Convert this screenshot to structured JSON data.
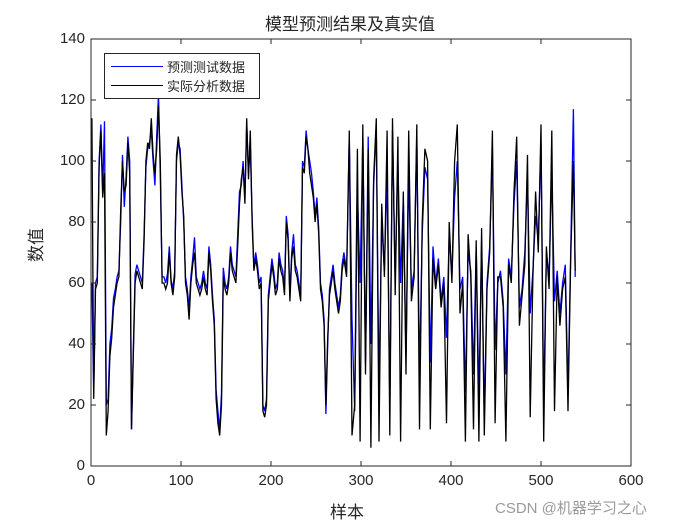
{
  "figure": {
    "title": "模型预测结果及真实值",
    "xlabel": "样本",
    "ylabel": "数值",
    "watermark": "CSDN @机器学习之心"
  },
  "legend": [
    {
      "label": "预测测试数据",
      "color": "#0000ff"
    },
    {
      "label": "实际分析数据",
      "color": "#000000"
    }
  ],
  "axes": {
    "x_ticks": [
      "0",
      "100",
      "200",
      "300",
      "400",
      "500",
      "600"
    ],
    "y_ticks": [
      "0",
      "20",
      "40",
      "60",
      "80",
      "100",
      "120",
      "140"
    ]
  },
  "chart_data": {
    "type": "line",
    "title": "模型预测结果及真实值",
    "xlabel": "样本",
    "ylabel": "数值",
    "xlim": [
      0,
      600
    ],
    "ylim": [
      0,
      140
    ],
    "grid": false,
    "legend_position": "upper-left",
    "x_ticks": [
      0,
      100,
      200,
      300,
      400,
      500,
      600
    ],
    "y_ticks": [
      0,
      20,
      40,
      60,
      80,
      100,
      120,
      140
    ],
    "series": [
      {
        "name": "预测测试数据",
        "color": "#0000ff",
        "x": [
          1,
          3,
          5,
          7,
          9,
          11,
          13,
          15,
          17,
          19,
          21,
          23,
          25,
          27,
          29,
          31,
          33,
          35,
          37,
          39,
          41,
          43,
          45,
          47,
          49,
          51,
          53,
          55,
          57,
          59,
          61,
          63,
          65,
          67,
          69,
          71,
          73,
          75,
          77,
          79,
          81,
          83,
          85,
          87,
          89,
          91,
          93,
          95,
          97,
          99,
          101,
          103,
          105,
          107,
          109,
          111,
          113,
          115,
          117,
          119,
          121,
          123,
          125,
          127,
          129,
          131,
          133,
          135,
          137,
          139,
          141,
          143,
          145,
          147,
          149,
          151,
          153,
          155,
          157,
          159,
          161,
          163,
          165,
          167,
          169,
          171,
          173,
          175,
          177,
          179,
          181,
          183,
          185,
          187,
          189,
          191,
          193,
          195,
          197,
          199,
          201,
          203,
          205,
          207,
          209,
          211,
          213,
          215,
          217,
          219,
          221,
          223,
          225,
          227,
          229,
          231,
          233,
          235,
          237,
          239,
          241,
          243,
          245,
          247,
          249,
          251,
          253,
          255,
          257,
          259,
          261,
          263,
          265,
          267,
          269,
          271,
          273,
          275,
          277,
          279,
          281,
          284,
          287,
          290,
          293,
          296,
          299,
          302,
          305,
          308,
          311,
          314,
          317,
          320,
          323,
          326,
          329,
          332,
          335,
          338,
          341,
          344,
          347,
          350,
          353,
          356,
          359,
          362,
          365,
          368,
          371,
          374,
          377,
          380,
          383,
          386,
          389,
          392,
          395,
          398,
          401,
          404,
          407,
          410,
          413,
          416,
          419,
          422,
          425,
          428,
          431,
          434,
          437,
          440,
          443,
          446,
          449,
          452,
          455,
          458,
          461,
          464,
          467,
          470,
          473,
          476,
          479,
          482,
          485,
          488,
          491,
          494,
          497,
          500,
          503,
          506,
          509,
          512,
          515,
          518,
          521,
          524,
          527,
          530,
          533,
          536,
          538
        ],
        "values": [
          60,
          24,
          60,
          62,
          100,
          112,
          90,
          113,
          20,
          22,
          40,
          45,
          55,
          58,
          62,
          64,
          80,
          102,
          85,
          95,
          108,
          100,
          12,
          38,
          63,
          66,
          64,
          62,
          60,
          76,
          98,
          104,
          106,
          110,
          100,
          92,
          108,
          122,
          95,
          62,
          62,
          60,
          63,
          72,
          61,
          58,
          64,
          100,
          106,
          104,
          92,
          80,
          62,
          58,
          52,
          62,
          68,
          75,
          62,
          60,
          58,
          60,
          64,
          60,
          58,
          72,
          66,
          56,
          48,
          25,
          18,
          12,
          24,
          65,
          60,
          58,
          62,
          72,
          66,
          64,
          62,
          76,
          90,
          92,
          100,
          88,
          112,
          96,
          105,
          82,
          65,
          70,
          66,
          60,
          62,
          20,
          18,
          22,
          56,
          62,
          68,
          64,
          58,
          60,
          70,
          66,
          64,
          58,
          82,
          76,
          56,
          70,
          76,
          66,
          64,
          60,
          56,
          100,
          98,
          110,
          104,
          100,
          96,
          90,
          82,
          88,
          78,
          60,
          56,
          48,
          17,
          40,
          58,
          62,
          66,
          60,
          56,
          52,
          56,
          66,
          70,
          64,
          108,
          48,
          18,
          90,
          60,
          108,
          34,
          108,
          40,
          92,
          110,
          26,
          80,
          64,
          96,
          20,
          110,
          62,
          100,
          60,
          88,
          36,
          96,
          58,
          64,
          108,
          30,
          76,
          98,
          94,
          34,
          72,
          60,
          68,
          54,
          62,
          42,
          76,
          62,
          88,
          100,
          58,
          62,
          24,
          70,
          64,
          30,
          72,
          22,
          74,
          16,
          60,
          72,
          104,
          38,
          60,
          64,
          54,
          30,
          68,
          62,
          86,
          100,
          52,
          58,
          70,
          94,
          50,
          64,
          82,
          74,
          106,
          20,
          70,
          62,
          96,
          54,
          64,
          50,
          60,
          66,
          24,
          70,
          117,
          62
        ]
      },
      {
        "name": "实际分析数据",
        "color": "#000000",
        "x": [
          1,
          3,
          5,
          7,
          9,
          11,
          13,
          15,
          17,
          19,
          21,
          23,
          25,
          27,
          29,
          31,
          33,
          35,
          37,
          39,
          41,
          43,
          45,
          47,
          49,
          51,
          53,
          55,
          57,
          59,
          61,
          63,
          65,
          67,
          69,
          71,
          73,
          75,
          77,
          79,
          81,
          83,
          85,
          87,
          89,
          91,
          93,
          95,
          97,
          99,
          101,
          103,
          105,
          107,
          109,
          111,
          113,
          115,
          117,
          119,
          121,
          123,
          125,
          127,
          129,
          131,
          133,
          135,
          137,
          139,
          141,
          143,
          145,
          147,
          149,
          151,
          153,
          155,
          157,
          159,
          161,
          163,
          165,
          167,
          169,
          171,
          173,
          175,
          177,
          179,
          181,
          183,
          185,
          187,
          189,
          191,
          193,
          195,
          197,
          199,
          201,
          203,
          205,
          207,
          209,
          211,
          213,
          215,
          217,
          219,
          221,
          223,
          225,
          227,
          229,
          231,
          233,
          235,
          237,
          239,
          241,
          243,
          245,
          247,
          249,
          251,
          253,
          255,
          257,
          259,
          261,
          263,
          265,
          267,
          269,
          271,
          273,
          275,
          277,
          279,
          281,
          284,
          287,
          290,
          293,
          296,
          299,
          302,
          305,
          308,
          311,
          314,
          317,
          320,
          323,
          326,
          329,
          332,
          335,
          338,
          341,
          344,
          347,
          350,
          353,
          356,
          359,
          362,
          365,
          368,
          371,
          374,
          377,
          380,
          383,
          386,
          389,
          392,
          395,
          398,
          401,
          404,
          407,
          410,
          413,
          416,
          419,
          422,
          425,
          428,
          431,
          434,
          437,
          440,
          443,
          446,
          449,
          452,
          455,
          458,
          461,
          464,
          467,
          470,
          473,
          476,
          479,
          482,
          485,
          488,
          491,
          494,
          497,
          500,
          503,
          506,
          509,
          512,
          515,
          518,
          521,
          524,
          527,
          530,
          533,
          536,
          538
        ],
        "values": [
          114,
          22,
          58,
          60,
          98,
          110,
          88,
          96,
          10,
          18,
          36,
          42,
          52,
          56,
          60,
          62,
          84,
          100,
          90,
          92,
          106,
          96,
          12,
          36,
          60,
          64,
          62,
          60,
          58,
          74,
          100,
          106,
          104,
          114,
          102,
          96,
          104,
          118,
          100,
          60,
          60,
          58,
          60,
          70,
          60,
          56,
          62,
          102,
          108,
          102,
          90,
          82,
          60,
          56,
          48,
          60,
          66,
          70,
          60,
          58,
          56,
          58,
          62,
          58,
          56,
          70,
          64,
          54,
          46,
          22,
          14,
          10,
          20,
          62,
          58,
          56,
          60,
          70,
          64,
          62,
          60,
          72,
          86,
          94,
          98,
          86,
          114,
          94,
          110,
          80,
          64,
          68,
          64,
          58,
          60,
          18,
          16,
          20,
          54,
          60,
          66,
          62,
          56,
          58,
          68,
          64,
          62,
          56,
          80,
          74,
          54,
          68,
          72,
          64,
          62,
          58,
          54,
          98,
          96,
          108,
          104,
          96,
          92,
          88,
          80,
          86,
          76,
          58,
          54,
          46,
          20,
          42,
          56,
          60,
          64,
          58,
          54,
          50,
          54,
          64,
          68,
          62,
          110,
          10,
          20,
          104,
          8,
          112,
          30,
          104,
          6,
          94,
          114,
          8,
          86,
          62,
          110,
          10,
          114,
          56,
          108,
          8,
          90,
          30,
          110,
          54,
          62,
          112,
          12,
          80,
          104,
          100,
          12,
          68,
          58,
          66,
          52,
          60,
          14,
          80,
          60,
          100,
          112,
          50,
          60,
          8,
          76,
          62,
          12,
          74,
          8,
          78,
          10,
          58,
          70,
          110,
          14,
          62,
          62,
          52,
          8,
          66,
          60,
          90,
          108,
          46,
          56,
          66,
          102,
          16,
          62,
          90,
          70,
          112,
          8,
          72,
          58,
          110,
          18,
          62,
          46,
          58,
          62,
          18,
          68,
          100,
          64
        ]
      }
    ]
  }
}
